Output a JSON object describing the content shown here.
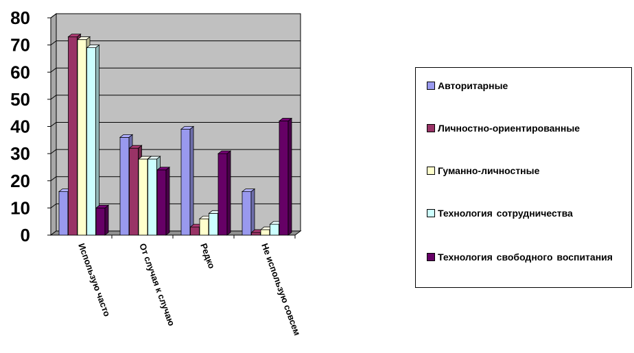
{
  "chart_data": {
    "type": "bar",
    "categories": [
      "Использую часто",
      "От случая к случаю",
      "Редко",
      "Не использую совсем"
    ],
    "series": [
      {
        "name": "Авторитарные",
        "values": [
          16,
          36,
          39,
          16
        ],
        "color": "#9999ee"
      },
      {
        "name": "Личностно-ориентированные",
        "values": [
          73,
          32,
          3,
          1
        ],
        "color": "#993366"
      },
      {
        "name": "Гуманно-личностные",
        "values": [
          72,
          28,
          6,
          2
        ],
        "color": "#ffffcc"
      },
      {
        "name": "Технология  сотрудничества",
        "values": [
          69,
          28,
          8,
          4
        ],
        "color": "#ccffff"
      },
      {
        "name": "Технология  свободного воспитания",
        "values": [
          10,
          24,
          30,
          42
        ],
        "color": "#660066"
      }
    ],
    "yticks": [
      "0",
      "10",
      "20",
      "30",
      "40",
      "50",
      "60",
      "70",
      "80"
    ],
    "ylim": [
      0,
      80
    ],
    "grid": true,
    "plot_background": "#c0c0c0",
    "chart_style": "3d-clustered-bar",
    "legend_position": "right"
  }
}
